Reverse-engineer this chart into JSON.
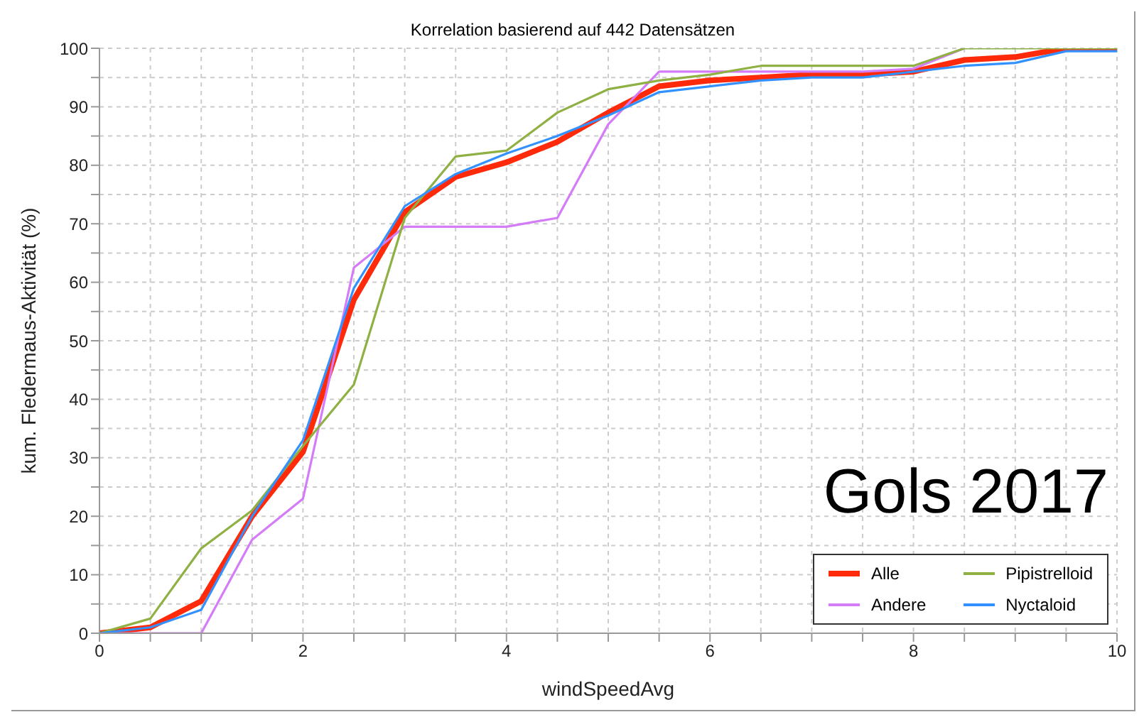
{
  "chart_data": {
    "type": "line",
    "title": "Korrelation basierend auf 442 Datensätzen",
    "xlabel": "windSpeedAvg",
    "ylabel": "kum. Fledermaus-Aktivität (%)",
    "annotations": [
      "Gols 2017"
    ],
    "x": [
      0,
      0.5,
      1,
      1.5,
      2,
      2.5,
      3,
      3.5,
      4,
      4.5,
      5,
      5.5,
      6,
      6.5,
      7,
      7.5,
      8,
      8.5,
      9,
      9.5,
      10
    ],
    "series": [
      {
        "name": "Alle",
        "color": "#ff2a0a",
        "values": [
          0,
          1,
          5.5,
          20,
          31,
          57,
          72,
          78,
          80.5,
          84,
          89,
          93.5,
          94.5,
          95,
          95.5,
          95.5,
          96,
          98,
          98.5,
          100,
          100
        ]
      },
      {
        "name": "Andere",
        "color": "#d47cf7",
        "values": [
          0,
          0,
          0,
          16,
          23,
          62.5,
          69.5,
          69.5,
          69.5,
          71,
          87,
          96,
          96,
          96,
          96,
          96,
          96.5,
          100,
          null,
          null,
          null
        ]
      },
      {
        "name": "Pipistrelloid",
        "color": "#8fb043",
        "values": [
          0,
          2.5,
          14.5,
          21,
          32,
          42.5,
          71,
          81.5,
          82.5,
          89,
          93,
          94.5,
          95.5,
          97,
          97,
          97,
          97,
          100,
          100,
          100,
          100
        ]
      },
      {
        "name": "Nyctaloid",
        "color": "#3391ff",
        "values": [
          0,
          1,
          4,
          20,
          33,
          59,
          73,
          78.5,
          82,
          85,
          88.5,
          92.5,
          93.5,
          94.5,
          95,
          95,
          96,
          97,
          97.5,
          99.5,
          99.5
        ]
      }
    ],
    "xlim": [
      0,
      10
    ],
    "ylim": [
      0,
      100
    ],
    "xticks": [
      0,
      {
        "value": 0.5,
        "label": null
      },
      {
        "value": 1,
        "label": null
      },
      {
        "value": 1.5,
        "label": null
      },
      2,
      {
        "value": 2.5,
        "label": null
      },
      {
        "value": 3,
        "label": null
      },
      {
        "value": 3.5,
        "label": null
      },
      4,
      {
        "value": 4.5,
        "label": null
      },
      {
        "value": 5,
        "label": null
      },
      {
        "value": 5.5,
        "label": null
      },
      6,
      {
        "value": 6.5,
        "label": null
      },
      {
        "value": 7,
        "label": null
      },
      {
        "value": 7.5,
        "label": null
      },
      8,
      {
        "value": 8.5,
        "label": null
      },
      {
        "value": 9,
        "label": null
      },
      {
        "value": 9.5,
        "label": null
      },
      10
    ],
    "yticks": [
      0,
      {
        "value": 5,
        "label": null
      },
      10,
      {
        "value": 15,
        "label": null
      },
      20,
      {
        "value": 25,
        "label": null
      },
      30,
      {
        "value": 35,
        "label": null
      },
      40,
      {
        "value": 45,
        "label": null
      },
      50,
      {
        "value": 55,
        "label": null
      },
      60,
      {
        "value": 65,
        "label": null
      },
      70,
      {
        "value": 75,
        "label": null
      },
      80,
      {
        "value": 85,
        "label": null
      },
      90,
      {
        "value": 95,
        "label": null
      },
      100
    ],
    "grid": true,
    "legend": "bottom right",
    "marker": "none",
    "line_style": "solid"
  }
}
